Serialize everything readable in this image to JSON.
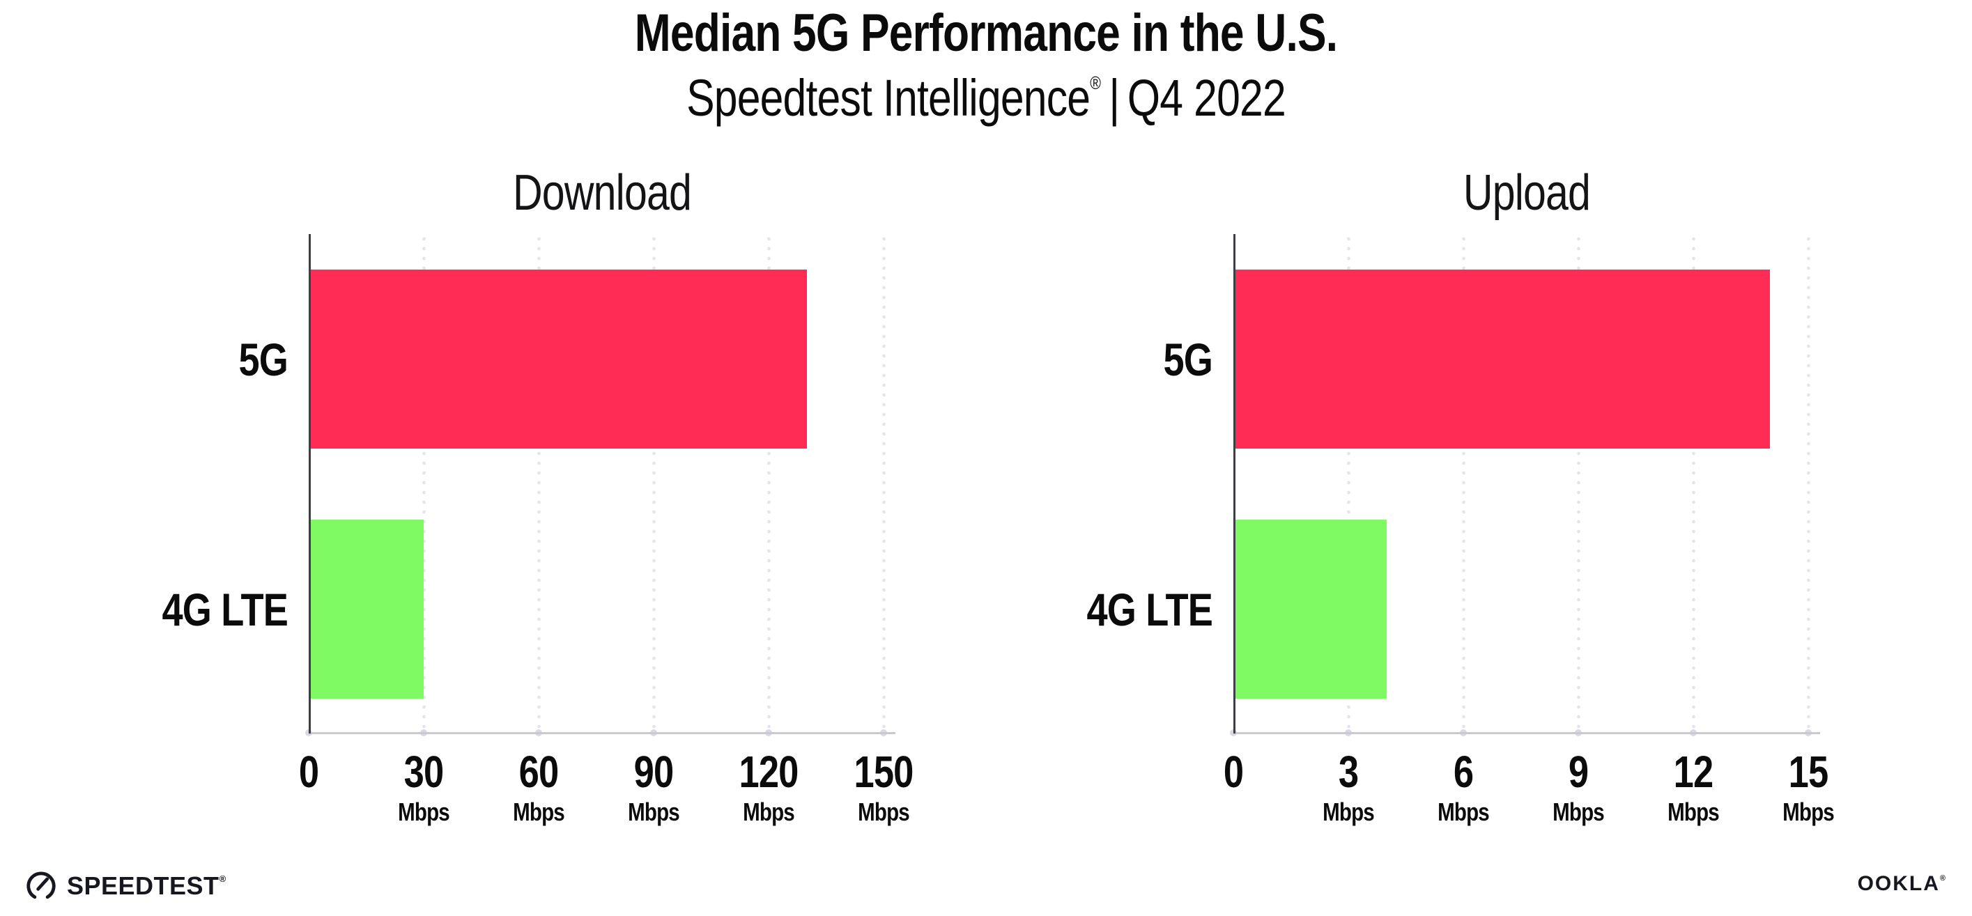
{
  "header": {
    "title": "Median 5G Performance in the U.S.",
    "subtitle_brand": "Speedtest Intelligence",
    "subtitle_reg_mark": "®",
    "subtitle_separator": "|",
    "subtitle_period": "Q4 2022"
  },
  "chart_data": [
    {
      "type": "bar",
      "orientation": "horizontal",
      "title": "Download",
      "categories": [
        "5G",
        "4G LTE"
      ],
      "values": [
        130,
        30
      ],
      "unit": "Mbps",
      "xlim": [
        0,
        150
      ],
      "xticks": [
        0,
        30,
        60,
        90,
        120,
        150
      ],
      "bar_colors": [
        "#FF2D56",
        "#80FA62"
      ],
      "grid": "dotted vertical gridlines at each tick",
      "legend": "none"
    },
    {
      "type": "bar",
      "orientation": "horizontal",
      "title": "Upload",
      "categories": [
        "5G",
        "4G LTE"
      ],
      "values": [
        14,
        4
      ],
      "unit": "Mbps",
      "xlim": [
        0,
        15
      ],
      "xticks": [
        0,
        3,
        6,
        9,
        12,
        15
      ],
      "bar_colors": [
        "#FF2D56",
        "#80FA62"
      ],
      "grid": "dotted vertical gridlines at each tick",
      "legend": "none"
    }
  ],
  "footer": {
    "speedtest_label": "SPEEDTEST",
    "speedtest_mark": "®",
    "ookla_label": "OOKLA",
    "ookla_mark": "®"
  },
  "colors": {
    "bar_5g": "#FF2D56",
    "bar_4g_lte": "#80FA62",
    "gridline": "#E4E4EE",
    "x_axis_line": "#C9C9CE",
    "y_axis_line": "#3E3E45",
    "tick_dot": "#D9D9E3",
    "text": "#0B0B0C",
    "logo": "#16171F",
    "background": "#FFFFFF"
  }
}
